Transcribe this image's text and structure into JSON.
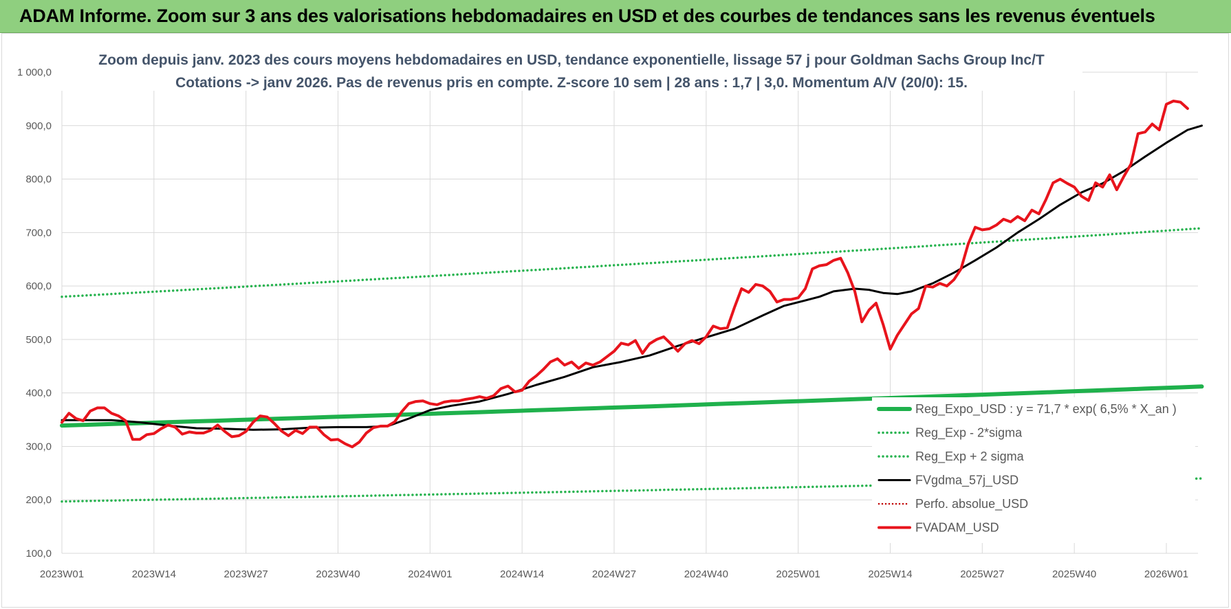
{
  "banner": {
    "title": "ADAM Informe. Zoom sur 3 ans des valorisations hebdomadaires en USD et des courbes de tendances sans les revenus éventuels"
  },
  "colors": {
    "banner_bg": "#8fcf7f",
    "reg_expo": "#1fb14c",
    "sigma_bands": "#27b34f",
    "fvgdma": "#000000",
    "perfo": "#c00000",
    "fvadam": "#e8141c",
    "grid": "#d9d9d9",
    "title_text": "#44546a"
  },
  "chart_data": {
    "type": "line",
    "title": "Zoom depuis janv. 2023 des cours moyens hebdomadaires en USD, tendance exponentielle, lissage 57 j pour Goldman Sachs Group Inc/T",
    "subtitle": "Cotations -> janv 2026. Pas de revenus pris en compte. Z-score 10 sem | 28 ans : 1,7 | 3,0. Momentum A/V (20/0): 15.",
    "ylim": [
      100,
      1000
    ],
    "y_ticks": [
      100,
      200,
      300,
      400,
      500,
      600,
      700,
      800,
      900,
      1000
    ],
    "y_tick_labels": [
      "100,0",
      "200,0",
      "300,0",
      "400,0",
      "500,0",
      "600,0",
      "700,0",
      "800,0",
      "900,0",
      "1 000,0"
    ],
    "x_ticks": [
      1,
      14,
      27,
      40,
      53,
      66,
      79,
      92,
      105,
      118,
      131,
      144,
      157
    ],
    "x_tick_labels": [
      "2023W01",
      "2023W14",
      "2023W27",
      "2023W40",
      "2024W01",
      "2024W14",
      "2024W27",
      "2024W40",
      "2025W01",
      "2025W14",
      "2025W27",
      "2025W40",
      "2026W01"
    ],
    "x_range": [
      1,
      162
    ],
    "grid": true,
    "legend_position": "bottom-right",
    "series": [
      {
        "name": "Reg_Expo_USD : y = 71,7 * exp( 6,5% *  X_an )",
        "style": "solid-thick",
        "points": [
          [
            1,
            339
          ],
          [
            162,
            412
          ]
        ]
      },
      {
        "name": "Reg_Exp - 2*sigma",
        "style": "dotted",
        "points": [
          [
            1,
            197
          ],
          [
            162,
            240
          ]
        ]
      },
      {
        "name": "Reg_Exp + 2 sigma",
        "style": "dotted",
        "points": [
          [
            1,
            580
          ],
          [
            162,
            708
          ]
        ]
      },
      {
        "name": "FVgdma_57j_USD",
        "style": "solid",
        "points": [
          [
            1,
            349
          ],
          [
            5,
            349
          ],
          [
            8,
            349
          ],
          [
            12,
            345
          ],
          [
            16,
            339
          ],
          [
            20,
            334
          ],
          [
            24,
            333
          ],
          [
            28,
            331
          ],
          [
            32,
            332
          ],
          [
            36,
            335
          ],
          [
            40,
            336
          ],
          [
            44,
            336
          ],
          [
            47,
            338
          ],
          [
            50,
            352
          ],
          [
            53,
            368
          ],
          [
            56,
            376
          ],
          [
            60,
            384
          ],
          [
            64,
            398
          ],
          [
            68,
            415
          ],
          [
            72,
            430
          ],
          [
            76,
            448
          ],
          [
            80,
            458
          ],
          [
            84,
            470
          ],
          [
            88,
            488
          ],
          [
            92,
            504
          ],
          [
            96,
            520
          ],
          [
            100,
            545
          ],
          [
            103,
            563
          ],
          [
            106,
            573
          ],
          [
            108,
            580
          ],
          [
            110,
            590
          ],
          [
            113,
            595
          ],
          [
            115,
            593
          ],
          [
            117,
            587
          ],
          [
            119,
            585
          ],
          [
            121,
            590
          ],
          [
            124,
            605
          ],
          [
            127,
            625
          ],
          [
            130,
            648
          ],
          [
            133,
            672
          ],
          [
            136,
            700
          ],
          [
            139,
            725
          ],
          [
            142,
            752
          ],
          [
            145,
            775
          ],
          [
            148,
            792
          ],
          [
            151,
            815
          ],
          [
            154,
            842
          ],
          [
            157,
            868
          ],
          [
            160,
            892
          ],
          [
            162,
            900
          ]
        ]
      },
      {
        "name": "Perfo. absolue_USD",
        "style": "dotted",
        "points": []
      },
      {
        "name": "FVADAM_USD",
        "style": "solid-thick",
        "points": [
          [
            1,
            345
          ],
          [
            2,
            362
          ],
          [
            3,
            352
          ],
          [
            4,
            348
          ],
          [
            5,
            366
          ],
          [
            6,
            372
          ],
          [
            7,
            372
          ],
          [
            8,
            362
          ],
          [
            9,
            357
          ],
          [
            10,
            348
          ],
          [
            11,
            313
          ],
          [
            12,
            313
          ],
          [
            13,
            322
          ],
          [
            14,
            324
          ],
          [
            15,
            333
          ],
          [
            16,
            340
          ],
          [
            17,
            336
          ],
          [
            18,
            323
          ],
          [
            19,
            327
          ],
          [
            20,
            325
          ],
          [
            21,
            325
          ],
          [
            22,
            330
          ],
          [
            23,
            340
          ],
          [
            24,
            328
          ],
          [
            25,
            318
          ],
          [
            26,
            320
          ],
          [
            27,
            328
          ],
          [
            28,
            345
          ],
          [
            29,
            357
          ],
          [
            30,
            355
          ],
          [
            31,
            343
          ],
          [
            32,
            329
          ],
          [
            33,
            320
          ],
          [
            34,
            330
          ],
          [
            35,
            324
          ],
          [
            36,
            336
          ],
          [
            37,
            336
          ],
          [
            38,
            322
          ],
          [
            39,
            312
          ],
          [
            40,
            313
          ],
          [
            41,
            305
          ],
          [
            42,
            299
          ],
          [
            43,
            308
          ],
          [
            44,
            325
          ],
          [
            45,
            335
          ],
          [
            46,
            338
          ],
          [
            47,
            338
          ],
          [
            48,
            346
          ],
          [
            49,
            365
          ],
          [
            50,
            380
          ],
          [
            51,
            384
          ],
          [
            52,
            385
          ],
          [
            53,
            380
          ],
          [
            54,
            378
          ],
          [
            55,
            383
          ],
          [
            56,
            385
          ],
          [
            57,
            385
          ],
          [
            58,
            388
          ],
          [
            59,
            390
          ],
          [
            60,
            393
          ],
          [
            61,
            390
          ],
          [
            62,
            395
          ],
          [
            63,
            408
          ],
          [
            64,
            413
          ],
          [
            65,
            402
          ],
          [
            66,
            405
          ],
          [
            67,
            422
          ],
          [
            68,
            432
          ],
          [
            69,
            444
          ],
          [
            70,
            458
          ],
          [
            71,
            464
          ],
          [
            72,
            452
          ],
          [
            73,
            458
          ],
          [
            74,
            446
          ],
          [
            75,
            456
          ],
          [
            76,
            452
          ],
          [
            77,
            458
          ],
          [
            78,
            468
          ],
          [
            79,
            478
          ],
          [
            80,
            493
          ],
          [
            81,
            490
          ],
          [
            82,
            498
          ],
          [
            83,
            474
          ],
          [
            84,
            492
          ],
          [
            85,
            500
          ],
          [
            86,
            505
          ],
          [
            87,
            492
          ],
          [
            88,
            478
          ],
          [
            89,
            492
          ],
          [
            90,
            498
          ],
          [
            91,
            492
          ],
          [
            92,
            505
          ],
          [
            93,
            525
          ],
          [
            94,
            520
          ],
          [
            95,
            522
          ],
          [
            96,
            560
          ],
          [
            97,
            595
          ],
          [
            98,
            588
          ],
          [
            99,
            603
          ],
          [
            100,
            600
          ],
          [
            101,
            590
          ],
          [
            102,
            570
          ],
          [
            103,
            575
          ],
          [
            104,
            575
          ],
          [
            105,
            578
          ],
          [
            106,
            595
          ],
          [
            107,
            632
          ],
          [
            108,
            638
          ],
          [
            109,
            640
          ],
          [
            110,
            648
          ],
          [
            111,
            652
          ],
          [
            112,
            625
          ],
          [
            113,
            590
          ],
          [
            114,
            533
          ],
          [
            115,
            555
          ],
          [
            116,
            568
          ],
          [
            117,
            528
          ],
          [
            118,
            482
          ],
          [
            119,
            508
          ],
          [
            120,
            528
          ],
          [
            121,
            548
          ],
          [
            122,
            558
          ],
          [
            123,
            600
          ],
          [
            124,
            598
          ],
          [
            125,
            605
          ],
          [
            126,
            600
          ],
          [
            127,
            612
          ],
          [
            128,
            632
          ],
          [
            129,
            678
          ],
          [
            130,
            710
          ],
          [
            131,
            705
          ],
          [
            132,
            707
          ],
          [
            133,
            714
          ],
          [
            134,
            725
          ],
          [
            135,
            720
          ],
          [
            136,
            730
          ],
          [
            137,
            722
          ],
          [
            138,
            742
          ],
          [
            139,
            735
          ],
          [
            140,
            762
          ],
          [
            141,
            793
          ],
          [
            142,
            800
          ],
          [
            143,
            792
          ],
          [
            144,
            785
          ],
          [
            145,
            768
          ],
          [
            146,
            760
          ],
          [
            147,
            793
          ],
          [
            148,
            785
          ],
          [
            149,
            808
          ],
          [
            150,
            780
          ],
          [
            151,
            805
          ],
          [
            152,
            828
          ],
          [
            153,
            885
          ],
          [
            154,
            888
          ],
          [
            155,
            903
          ],
          [
            156,
            892
          ],
          [
            157,
            940
          ],
          [
            158,
            946
          ],
          [
            159,
            944
          ],
          [
            160,
            932
          ]
        ]
      }
    ]
  }
}
